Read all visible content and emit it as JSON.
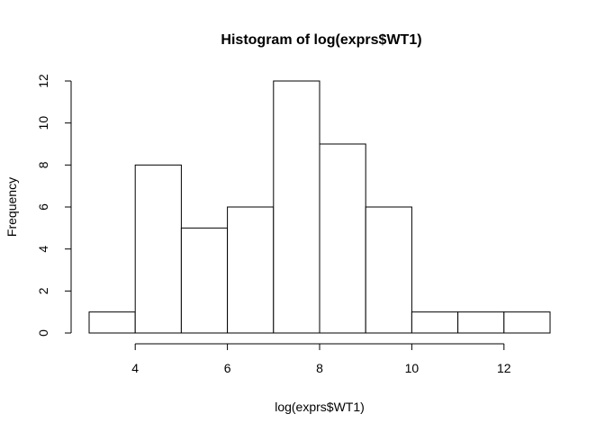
{
  "chart_data": {
    "type": "bar",
    "title": "Histogram of log(exprs$WT1)",
    "xlabel": "log(exprs$WT1)",
    "ylabel": "Frequency",
    "bins": [
      {
        "start": 3,
        "end": 4,
        "count": 1
      },
      {
        "start": 4,
        "end": 5,
        "count": 8
      },
      {
        "start": 5,
        "end": 6,
        "count": 5
      },
      {
        "start": 6,
        "end": 7,
        "count": 6
      },
      {
        "start": 7,
        "end": 8,
        "count": 12
      },
      {
        "start": 8,
        "end": 9,
        "count": 9
      },
      {
        "start": 9,
        "end": 10,
        "count": 6
      },
      {
        "start": 10,
        "end": 11,
        "count": 1
      },
      {
        "start": 11,
        "end": 12,
        "count": 1
      },
      {
        "start": 12,
        "end": 13,
        "count": 1
      }
    ],
    "xlim": [
      3,
      13
    ],
    "ylim": [
      0,
      12
    ],
    "x_ticks": [
      4,
      6,
      8,
      10,
      12
    ],
    "y_ticks": [
      0,
      2,
      4,
      6,
      8,
      10,
      12
    ],
    "grid": false,
    "legend": "none"
  }
}
